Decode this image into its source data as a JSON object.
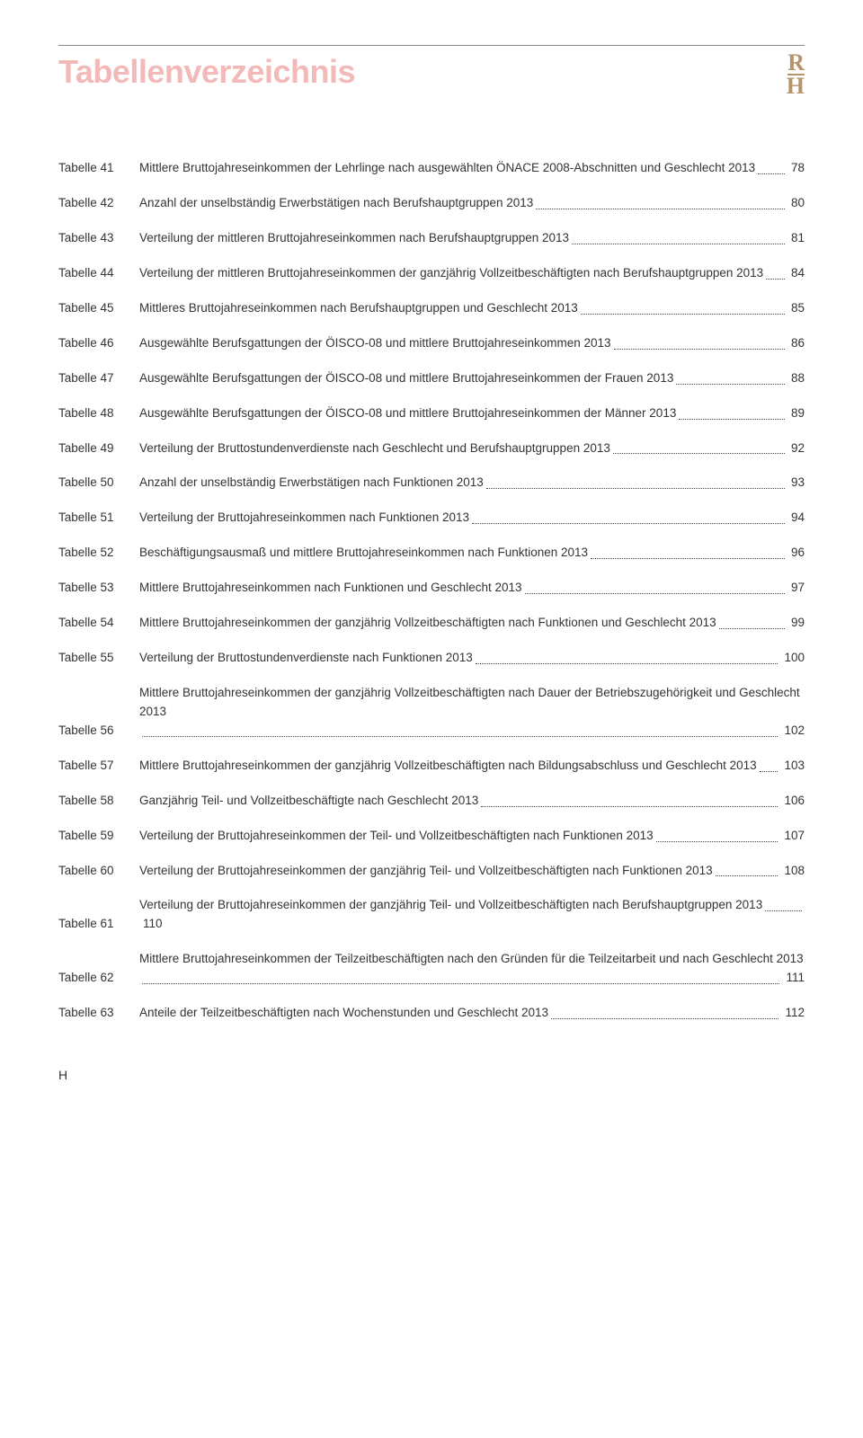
{
  "title": "Tabellenverzeichnis",
  "logo": {
    "top": "R",
    "bottom": "H"
  },
  "entries": [
    {
      "label": "Tabelle 41",
      "desc": "Mittlere Bruttojahreseinkommen der Lehrlinge nach ausgewählten ÖNACE 2008-Abschnitten und Geschlecht 2013",
      "page": "78"
    },
    {
      "label": "Tabelle 42",
      "desc": "Anzahl der unselbständig Erwerbstätigen nach Berufshauptgruppen 2013",
      "page": "80"
    },
    {
      "label": "Tabelle 43",
      "desc": "Verteilung der mittleren Bruttojahreseinkommen nach Berufshauptgruppen 2013",
      "page": "81"
    },
    {
      "label": "Tabelle 44",
      "desc": "Verteilung der mittleren Bruttojahreseinkommen der ganzjährig Vollzeitbeschäftigten nach Berufshauptgruppen 2013",
      "page": "84"
    },
    {
      "label": "Tabelle 45",
      "desc": "Mittleres Bruttojahreseinkommen nach Berufshauptgruppen und Geschlecht 2013",
      "page": "85"
    },
    {
      "label": "Tabelle 46",
      "desc": "Ausgewählte Berufsgattungen der ÖISCO-08 und mittlere Bruttojahreseinkommen 2013",
      "page": "86"
    },
    {
      "label": "Tabelle 47",
      "desc": "Ausgewählte Berufsgattungen der ÖISCO-08 und mittlere Bruttojahreseinkommen der Frauen 2013",
      "page": "88"
    },
    {
      "label": "Tabelle 48",
      "desc": "Ausgewählte Berufsgattungen der ÖISCO-08 und mittlere Bruttojahreseinkommen der Männer 2013",
      "page": "89"
    },
    {
      "label": "Tabelle 49",
      "desc": "Verteilung der Bruttostundenverdienste nach Geschlecht und Berufshauptgruppen 2013",
      "page": "92"
    },
    {
      "label": "Tabelle 50",
      "desc": "Anzahl der unselbständig Erwerbstätigen nach Funktionen 2013",
      "page": "93"
    },
    {
      "label": "Tabelle 51",
      "desc": "Verteilung der Bruttojahreseinkommen nach Funktionen 2013",
      "page": "94"
    },
    {
      "label": "Tabelle 52",
      "desc": "Beschäftigungsausmaß und mittlere Bruttojahreseinkommen nach Funktionen 2013",
      "page": "96"
    },
    {
      "label": "Tabelle 53",
      "desc": "Mittlere Bruttojahreseinkommen nach Funktionen und Geschlecht 2013",
      "page": "97"
    },
    {
      "label": "Tabelle 54",
      "desc": "Mittlere Bruttojahreseinkommen der ganzjährig Vollzeitbeschäftigten nach Funktionen und Geschlecht 2013",
      "page": "99"
    },
    {
      "label": "Tabelle 55",
      "desc": "Verteilung der Bruttostundenverdienste nach Funktionen 2013",
      "page": "100"
    },
    {
      "label": "Tabelle 56",
      "desc": "Mittlere Bruttojahreseinkommen der ganzjährig Vollzeitbeschäftigten nach Dauer der Betriebszugehörigkeit und Geschlecht 2013",
      "page": "102"
    },
    {
      "label": "Tabelle 57",
      "desc": "Mittlere Bruttojahreseinkommen der ganzjährig Vollzeitbeschäftigten nach Bildungsabschluss und Geschlecht 2013",
      "page": "103"
    },
    {
      "label": "Tabelle 58",
      "desc": "Ganzjährig Teil- und Vollzeitbeschäftigte nach Geschlecht 2013",
      "page": "106"
    },
    {
      "label": "Tabelle 59",
      "desc": "Verteilung der Bruttojahreseinkommen der Teil- und Vollzeitbeschäftigten nach Funktionen 2013",
      "page": "107"
    },
    {
      "label": "Tabelle 60",
      "desc": "Verteilung der Bruttojahreseinkommen der ganzjährig Teil- und Vollzeitbeschäftigten nach Funktionen 2013",
      "page": "108"
    },
    {
      "label": "Tabelle 61",
      "desc": "Verteilung der Bruttojahreseinkommen der ganzjährig Teil- und Vollzeitbeschäftigten nach Berufshauptgruppen 2013",
      "page": "110"
    },
    {
      "label": "Tabelle 62",
      "desc": "Mittlere Bruttojahreseinkommen der Teilzeitbeschäftigten nach den Gründen für die Teilzeitarbeit und nach Geschlecht 2013",
      "page": "111"
    },
    {
      "label": "Tabelle 63",
      "desc": "Anteile der Teilzeitbeschäftigten nach Wochenstunden und Geschlecht 2013",
      "page": "112"
    }
  ],
  "footer": "H"
}
